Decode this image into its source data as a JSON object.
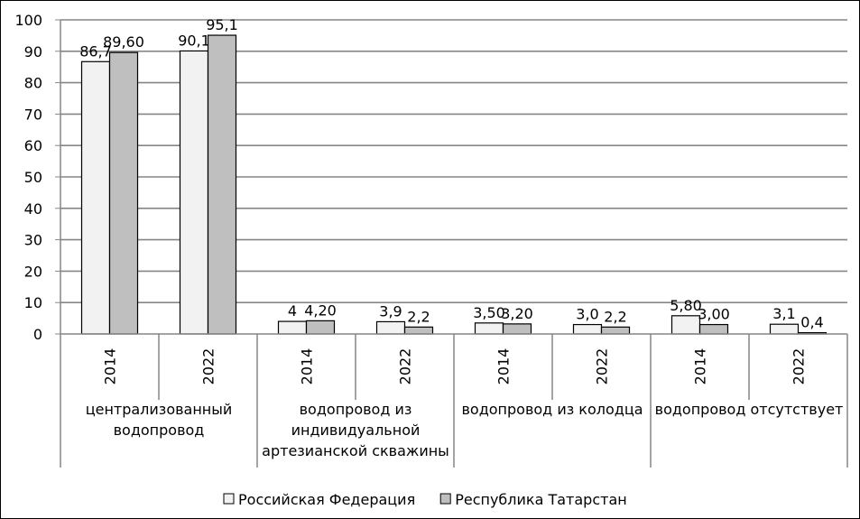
{
  "chart_data": {
    "type": "bar",
    "title": "",
    "xlabel": "",
    "ylabel": "",
    "ylim": [
      0,
      100
    ],
    "yticks": [
      "0",
      "10",
      "20",
      "30",
      "40",
      "50",
      "60",
      "70",
      "80",
      "90",
      "100"
    ],
    "grid": true,
    "legend_position": "bottom",
    "groups": [
      {
        "label_lines": [
          "централизованный",
          "водопровод"
        ],
        "years": [
          "2014",
          "2022"
        ]
      },
      {
        "label_lines": [
          "водопровод из",
          "индивидуальной",
          "артезианской скважины"
        ],
        "years": [
          "2014",
          "2022"
        ]
      },
      {
        "label_lines": [
          "водопровод из колодца"
        ],
        "years": [
          "2014",
          "2022"
        ]
      },
      {
        "label_lines": [
          "водопровод отсутствует"
        ],
        "years": [
          "2014",
          "2022"
        ]
      }
    ],
    "categories": [
      "2014",
      "2022",
      "2014",
      "2022",
      "2014",
      "2022",
      "2014",
      "2022"
    ],
    "series": [
      {
        "name": "Российская Федерация",
        "color": "#f2f2f2",
        "values": [
          86.7,
          90.1,
          4,
          3.9,
          3.5,
          3.0,
          5.8,
          3.1
        ],
        "labels": [
          "86,7",
          "90,1",
          "4",
          "3,9",
          "3,50",
          "3,0",
          "5,80",
          "3,1"
        ]
      },
      {
        "name": "Республика Татарстан",
        "color": "#bfbfbf",
        "values": [
          89.6,
          95.1,
          4.2,
          2.2,
          3.2,
          2.2,
          3.0,
          0.4
        ],
        "labels": [
          "89,60",
          "95,1",
          "4,20",
          "2,2",
          "3,20",
          "2,2",
          "3,00",
          "0,4"
        ]
      }
    ]
  }
}
